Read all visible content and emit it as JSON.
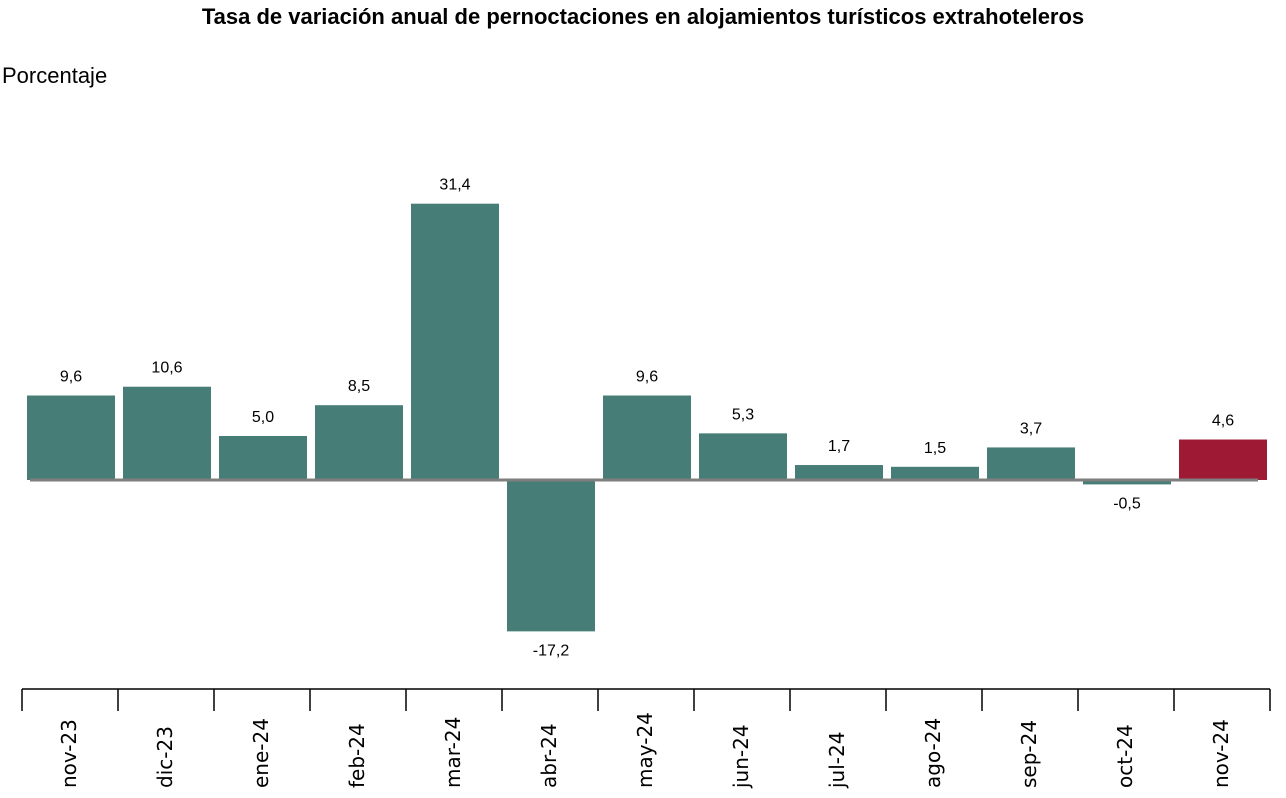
{
  "chart_data": {
    "type": "bar",
    "title": "Tasa de variación anual de pernoctaciones en alojamientos turísticos extrahoteleros",
    "ylabel": "Porcentaje",
    "xlabel": "",
    "categories": [
      "nov-23",
      "dic-23",
      "ene-24",
      "feb-24",
      "mar-24",
      "abr-24",
      "may-24",
      "jun-24",
      "jul-24",
      "ago-24",
      "sep-24",
      "oct-24",
      "nov-24"
    ],
    "values": [
      9.6,
      10.6,
      5.0,
      8.5,
      31.4,
      -17.2,
      9.6,
      5.3,
      1.7,
      1.5,
      3.7,
      -0.5,
      4.6
    ],
    "value_labels": [
      "9,6",
      "10,6",
      "5,0",
      "8,5",
      "31,4",
      "-17,2",
      "9,6",
      "5,3",
      "1,7",
      "1,5",
      "3,7",
      "-0,5",
      "4,6"
    ],
    "grid": false,
    "colors": {
      "default": "#467d76",
      "highlight": "#9e1a34",
      "axis": "#7f7f7f"
    },
    "highlight_index": 12
  }
}
